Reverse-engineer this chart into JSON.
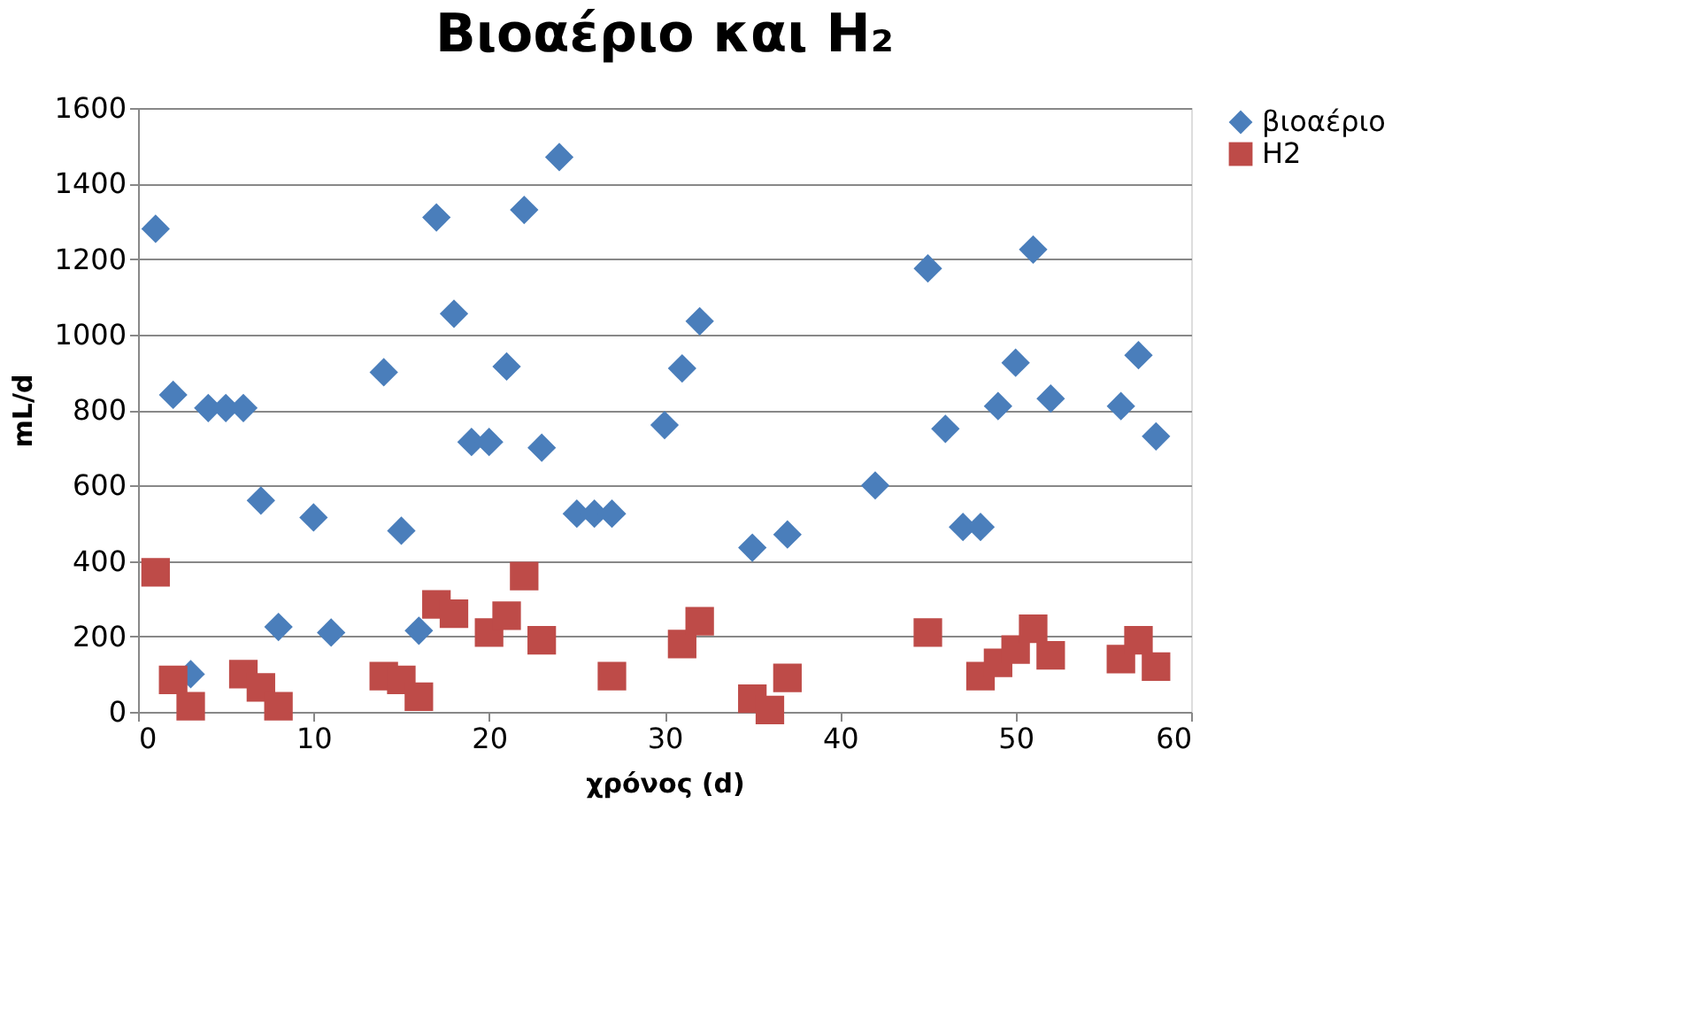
{
  "chart_data": {
    "type": "scatter",
    "title": "Βιοαέριο και H₂",
    "xlabel": "χρόνος (d)",
    "ylabel": "mL/d",
    "xlim": [
      0,
      60
    ],
    "xticks": [
      0,
      10,
      20,
      30,
      40,
      50,
      60
    ],
    "ylim": [
      0,
      1600
    ],
    "yticks": [
      0,
      200,
      400,
      600,
      800,
      1000,
      1200,
      1400,
      1600
    ],
    "grid": "y",
    "legend": "right",
    "series": [
      {
        "name": "βιοαέριο",
        "color": "#4a7ebb",
        "marker": "diamond",
        "x": [
          1,
          2,
          3,
          4,
          5,
          6,
          7,
          8,
          10,
          11,
          14,
          15,
          16,
          17,
          18,
          19,
          20,
          21,
          22,
          23,
          24,
          25,
          26,
          27,
          30,
          31,
          32,
          35,
          37,
          42,
          45,
          46,
          47,
          48,
          49,
          50,
          51,
          52,
          56,
          57,
          58
        ],
        "values": [
          1280,
          840,
          100,
          805,
          805,
          805,
          560,
          225,
          515,
          210,
          900,
          480,
          215,
          1310,
          1055,
          715,
          715,
          915,
          1330,
          700,
          1470,
          525,
          525,
          525,
          760,
          910,
          1035,
          435,
          470,
          600,
          1175,
          750,
          490,
          490,
          810,
          925,
          1225,
          830,
          810,
          945,
          730
        ]
      },
      {
        "name": "H2",
        "color": "#be4b48",
        "marker": "square",
        "x": [
          1,
          2,
          3,
          6,
          7,
          8,
          14,
          15,
          16,
          17,
          18,
          20,
          21,
          22,
          23,
          27,
          31,
          32,
          35,
          36,
          37,
          45,
          48,
          49,
          50,
          51,
          52,
          56,
          57,
          58
        ],
        "values": [
          370,
          85,
          15,
          100,
          65,
          15,
          95,
          85,
          40,
          285,
          260,
          210,
          255,
          360,
          190,
          95,
          180,
          240,
          35,
          5,
          90,
          210,
          95,
          130,
          165,
          220,
          150,
          140,
          190,
          120
        ]
      }
    ]
  }
}
